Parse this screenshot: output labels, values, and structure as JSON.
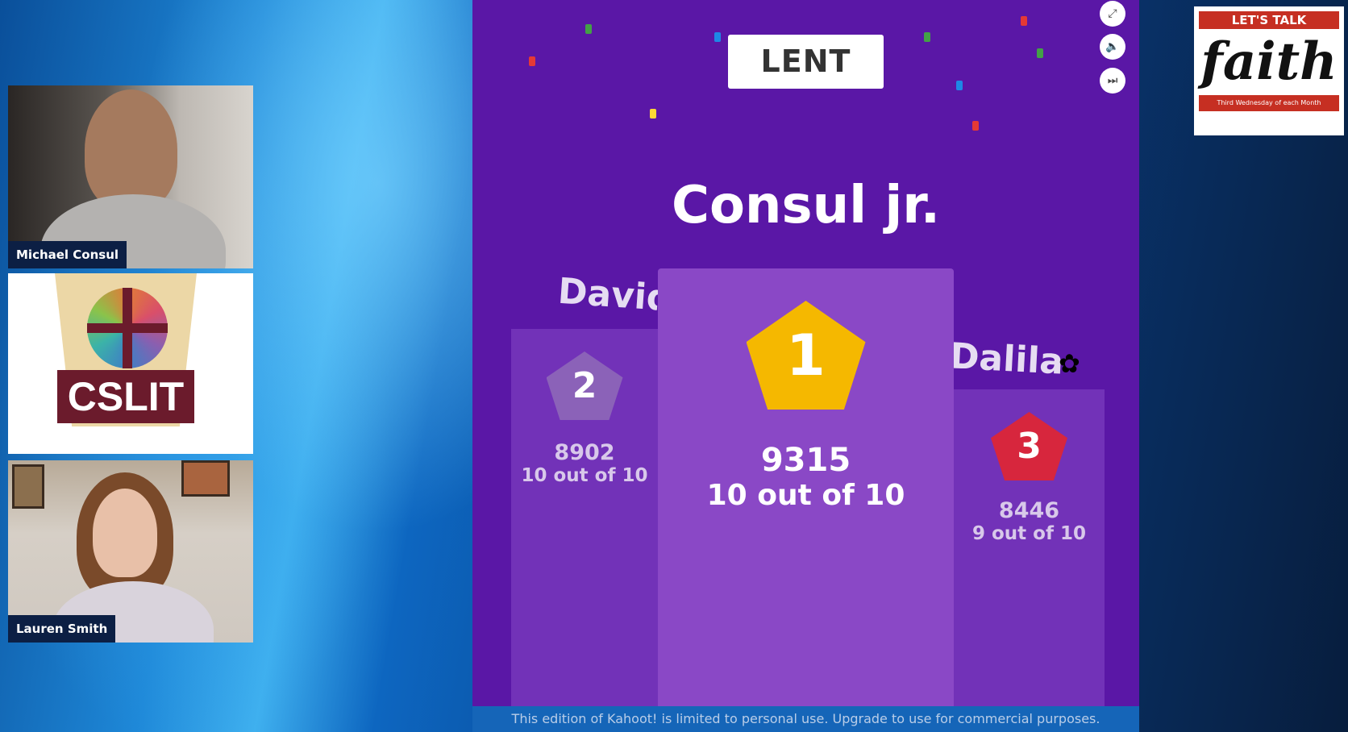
{
  "participants": [
    {
      "name": "Michael Consul"
    },
    {
      "name": "Lauren Smith"
    }
  ],
  "org_logo": {
    "text": "CSLIT"
  },
  "kahoot": {
    "quiz_title": "LENT",
    "winner_name": "Consul jr.",
    "controls": [
      {
        "icon": "fullscreen-icon"
      },
      {
        "icon": "volume-icon"
      },
      {
        "icon": "skip-icon"
      }
    ],
    "podium": [
      {
        "rank": "1",
        "name": "Consul jr.",
        "score": "9315",
        "correct": "10 out of 10",
        "color": "#f5b800"
      },
      {
        "rank": "2",
        "name": "David",
        "score": "8902",
        "correct": "10 out of 10",
        "color": "#6b3fa0"
      },
      {
        "rank": "3",
        "name": "Dalila",
        "score": "8446",
        "correct": "9 out of 10",
        "color": "#d7263d"
      }
    ],
    "footer": "This edition of Kahoot! is limited to personal use.  Upgrade to use for commercial purposes."
  },
  "faith_logo": {
    "top": "LET'S TALK",
    "main": "faith",
    "sub": "Third Wednesday of each Month"
  }
}
